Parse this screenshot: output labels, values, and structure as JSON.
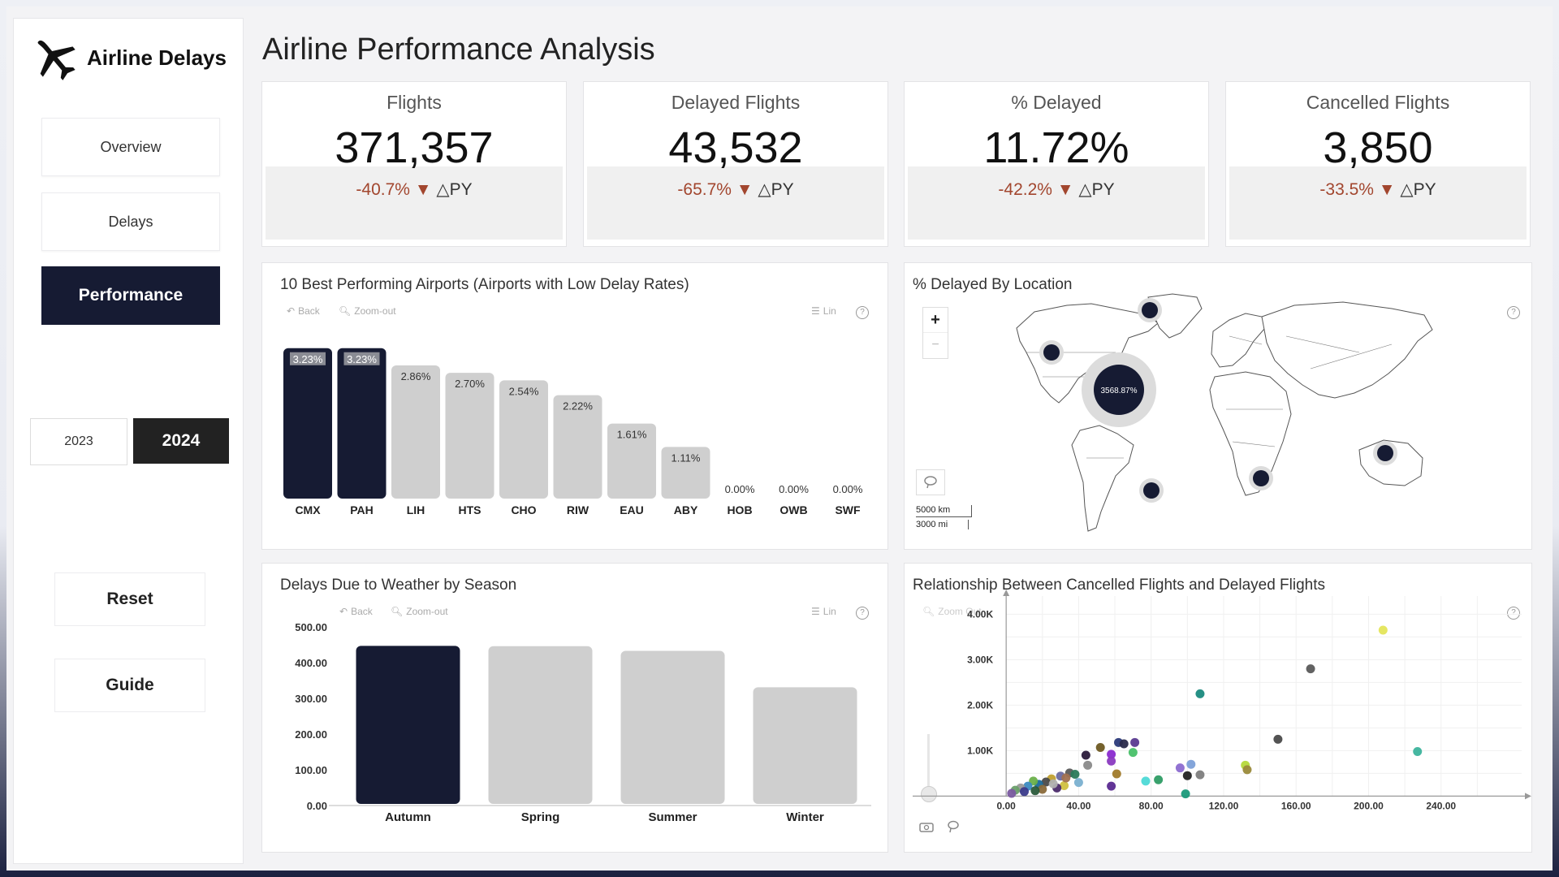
{
  "app": {
    "title": "Airline Delays"
  },
  "page_title": "Airline Performance Analysis",
  "nav": [
    {
      "label": "Overview",
      "active": false
    },
    {
      "label": "Delays",
      "active": false
    },
    {
      "label": "Performance",
      "active": true
    }
  ],
  "years": [
    {
      "label": "2023",
      "selected": false
    },
    {
      "label": "2024",
      "selected": true
    }
  ],
  "actions": {
    "reset": "Reset",
    "guide": "Guide"
  },
  "kpis": [
    {
      "label": "Flights",
      "value": "371,357",
      "delta": "-40.7%",
      "py": "△PY"
    },
    {
      "label": "Delayed Flights",
      "value": "43,532",
      "delta": "-65.7%",
      "py": "△PY"
    },
    {
      "label": "% Delayed",
      "value": "11.72%",
      "delta": "-42.2%",
      "py": "△PY"
    },
    {
      "label": "Cancelled Flights",
      "value": "3,850",
      "delta": "-33.5%",
      "py": "△PY"
    }
  ],
  "toolbar": {
    "back": "Back",
    "zoom_out": "Zoom-out",
    "zoom_out_scatter": "Zoom Out",
    "lin": "Lin",
    "help": "?"
  },
  "map_panel": {
    "title": "% Delayed By Location",
    "zoom_in": "+",
    "zoom_out": "−",
    "scale_km": "5000 km",
    "scale_mi": "3000 mi",
    "big_bubble_label": "3568.87%"
  },
  "colors": {
    "dark": "#161b33",
    "gray": "#cfcfcf",
    "negative": "#a2462e"
  },
  "chart_data": [
    {
      "type": "bar",
      "title": "10 Best Performing Airports (Airports with Low Delay Rates)",
      "categories": [
        "CMX",
        "PAH",
        "LIH",
        "HTS",
        "CHO",
        "RIW",
        "EAU",
        "ABY",
        "HOB",
        "OWB",
        "SWF"
      ],
      "values": [
        3.23,
        3.23,
        2.86,
        2.7,
        2.54,
        2.22,
        1.61,
        1.11,
        0.0,
        0.0,
        0.0
      ],
      "labels": [
        "3.23%",
        "3.23%",
        "2.86%",
        "2.70%",
        "2.54%",
        "2.22%",
        "1.61%",
        "1.11%",
        "0.00%",
        "0.00%",
        "0.00%"
      ],
      "highlight": [
        true,
        true,
        false,
        false,
        false,
        false,
        false,
        false,
        false,
        false,
        false
      ],
      "ylim": [
        0,
        3.4
      ]
    },
    {
      "type": "bar",
      "title": "Delays Due to Weather by Season",
      "categories": [
        "Autumn",
        "Spring",
        "Summer",
        "Winter"
      ],
      "values": [
        447,
        446,
        433,
        331
      ],
      "highlight": [
        true,
        false,
        false,
        false
      ],
      "yticks": [
        "0.00",
        "100.00",
        "200.00",
        "300.00",
        "400.00",
        "500.00"
      ],
      "ylim": [
        0,
        500
      ]
    },
    {
      "type": "scatter",
      "title": "Relationship Between Cancelled Flights and Delayed Flights",
      "xticks": [
        "0.00",
        "40.00",
        "80.00",
        "120.00",
        "160.00",
        "200.00",
        "240.00"
      ],
      "yticks": [
        "1.00K",
        "2.00K",
        "3.00K",
        "4.00K"
      ],
      "xlim": [
        -5,
        280
      ],
      "ylim": [
        -100,
        4400
      ],
      "points": [
        {
          "x": 208,
          "y": 3650,
          "c": "#e4e55a"
        },
        {
          "x": 168,
          "y": 2800,
          "c": "#5a5a5a"
        },
        {
          "x": 107,
          "y": 2250,
          "c": "#1a8a7e"
        },
        {
          "x": 150,
          "y": 1250,
          "c": "#4a4a4a"
        },
        {
          "x": 227,
          "y": 980,
          "c": "#3cb39c"
        },
        {
          "x": 132,
          "y": 680,
          "c": "#b5d93a"
        },
        {
          "x": 133,
          "y": 580,
          "c": "#9a8a3a"
        },
        {
          "x": 107,
          "y": 470,
          "c": "#7d7d7d"
        },
        {
          "x": 102,
          "y": 700,
          "c": "#7da0d8"
        },
        {
          "x": 96,
          "y": 620,
          "c": "#8c6cd0"
        },
        {
          "x": 100,
          "y": 450,
          "c": "#222222"
        },
        {
          "x": 84,
          "y": 360,
          "c": "#2e9c64"
        },
        {
          "x": 77,
          "y": 330,
          "c": "#4dd9d6"
        },
        {
          "x": 99,
          "y": 50,
          "c": "#1a9a7a"
        },
        {
          "x": 62,
          "y": 1180,
          "c": "#2b3a7a"
        },
        {
          "x": 71,
          "y": 1180,
          "c": "#5a3a90"
        },
        {
          "x": 65,
          "y": 1150,
          "c": "#2a2a4a"
        },
        {
          "x": 52,
          "y": 1070,
          "c": "#6e5a22"
        },
        {
          "x": 58,
          "y": 920,
          "c": "#8a2ad0"
        },
        {
          "x": 70,
          "y": 960,
          "c": "#48c068"
        },
        {
          "x": 58,
          "y": 770,
          "c": "#8a3ac0"
        },
        {
          "x": 44,
          "y": 900,
          "c": "#2a1a3a"
        },
        {
          "x": 45,
          "y": 680,
          "c": "#8a8a8a"
        },
        {
          "x": 61,
          "y": 490,
          "c": "#a07a2a"
        },
        {
          "x": 58,
          "y": 220,
          "c": "#5a2a90"
        },
        {
          "x": 35,
          "y": 510,
          "c": "#5a5a5a"
        },
        {
          "x": 38,
          "y": 480,
          "c": "#2a7a5a"
        },
        {
          "x": 30,
          "y": 440,
          "c": "#6a6aa0"
        },
        {
          "x": 25,
          "y": 380,
          "c": "#c0a030"
        },
        {
          "x": 22,
          "y": 310,
          "c": "#4a4a4a"
        },
        {
          "x": 18,
          "y": 260,
          "c": "#1a6a9a"
        },
        {
          "x": 32,
          "y": 230,
          "c": "#d0c040"
        },
        {
          "x": 15,
          "y": 330,
          "c": "#6ab04a"
        },
        {
          "x": 28,
          "y": 180,
          "c": "#4a2a6a"
        },
        {
          "x": 12,
          "y": 220,
          "c": "#3a8ac0"
        },
        {
          "x": 20,
          "y": 150,
          "c": "#8a6a3a"
        },
        {
          "x": 8,
          "y": 180,
          "c": "#9a9a9a"
        },
        {
          "x": 10,
          "y": 100,
          "c": "#3a3a8a"
        },
        {
          "x": 5,
          "y": 130,
          "c": "#6aa06a"
        },
        {
          "x": 3,
          "y": 60,
          "c": "#7a5aa0"
        },
        {
          "x": 26,
          "y": 270,
          "c": "#b0b0b0"
        },
        {
          "x": 16,
          "y": 120,
          "c": "#2a5a3a"
        },
        {
          "x": 40,
          "y": 300,
          "c": "#7ab0d0"
        },
        {
          "x": 33,
          "y": 400,
          "c": "#a07050"
        }
      ]
    }
  ]
}
